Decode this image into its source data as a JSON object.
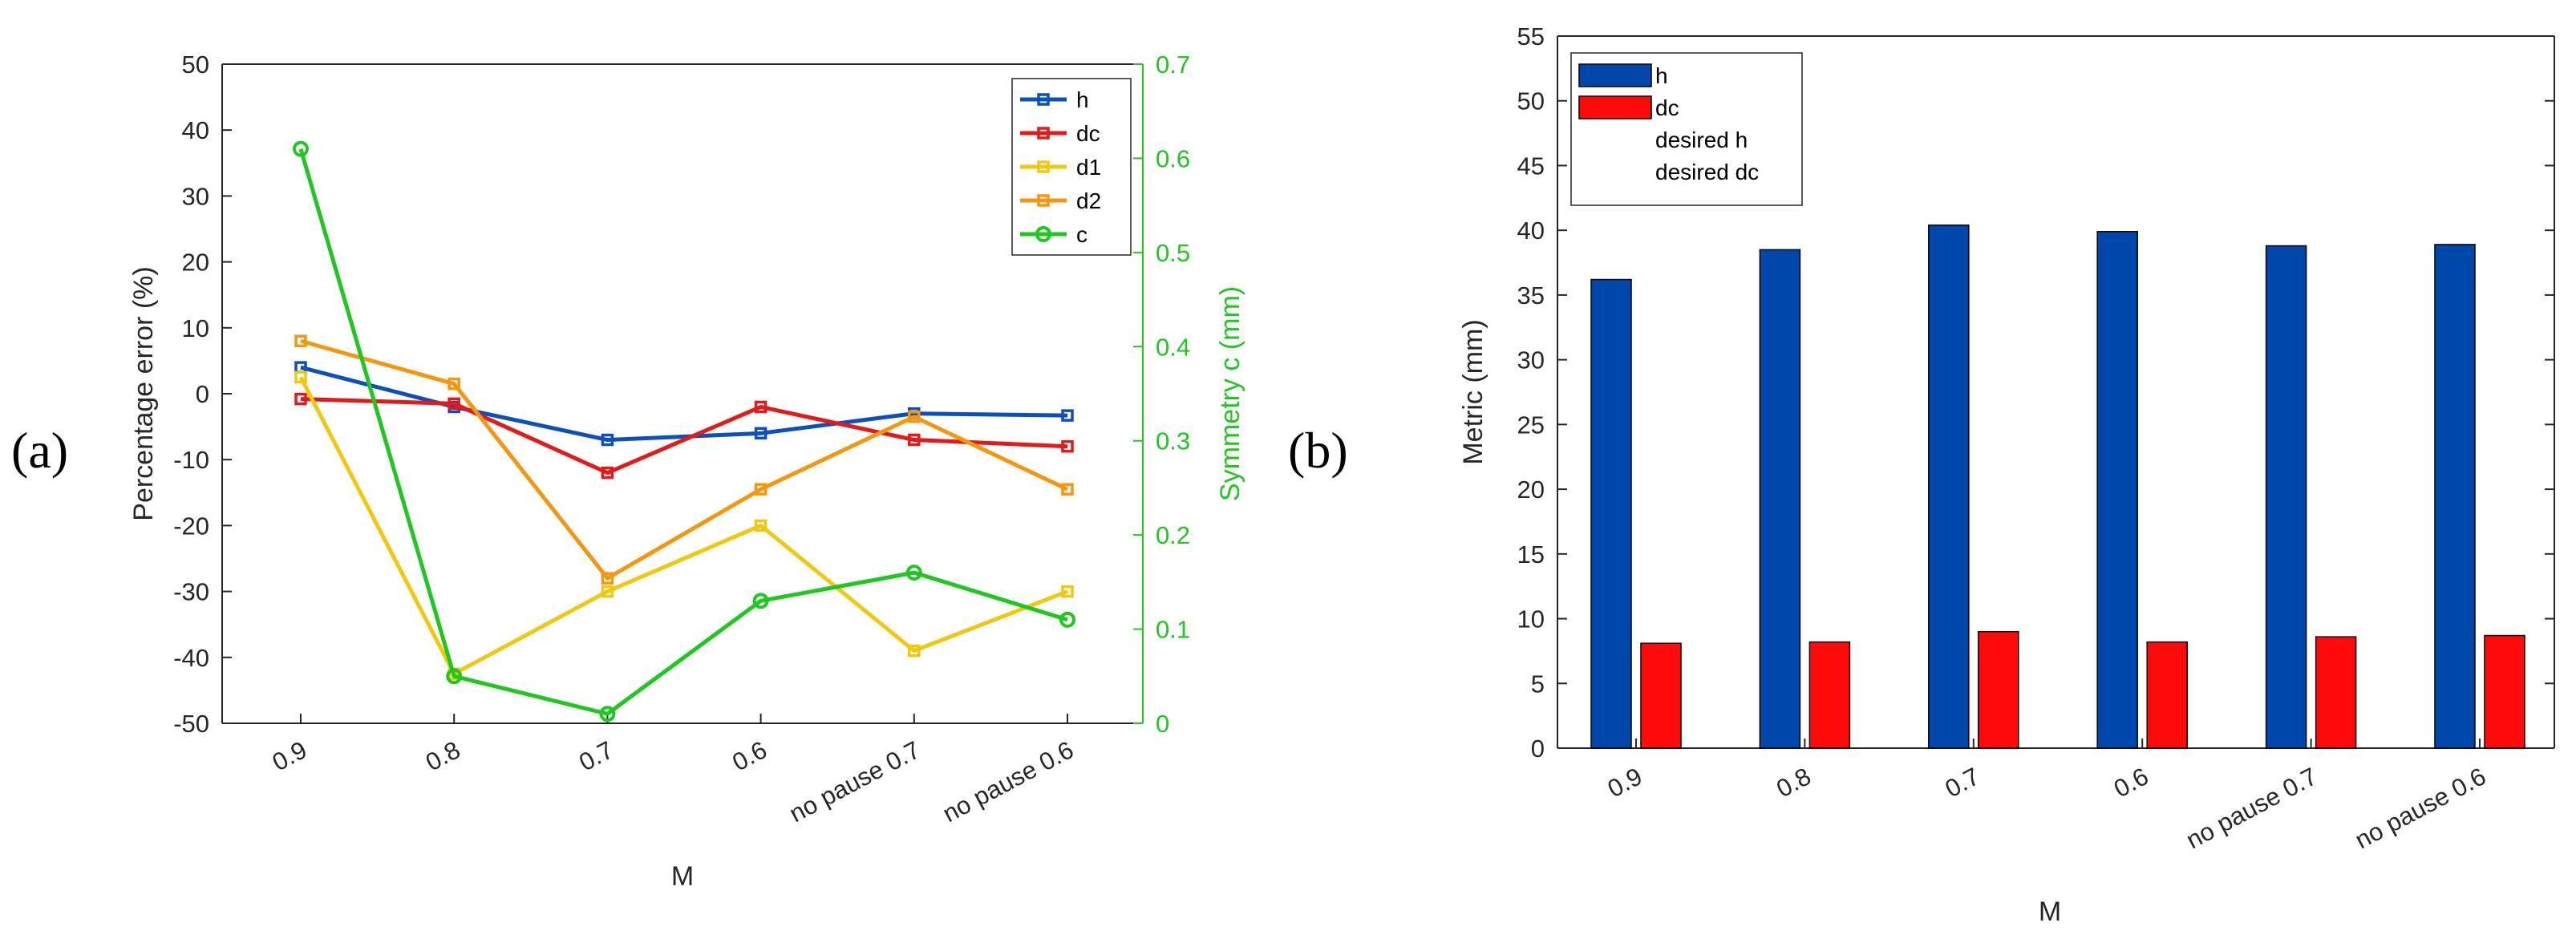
{
  "panels": [
    {
      "label": "(a)",
      "chart_data": {
        "type": "line",
        "categories": [
          "0.9",
          "0.8",
          "0.7",
          "0.6",
          "no pause 0.7",
          "no pause 0.6"
        ],
        "xlabel": "M",
        "ylabel": "Percentage error (%)",
        "ylabel_right": "Symmetry c (mm)",
        "ylim": [
          -50,
          50
        ],
        "ylim_right": [
          0,
          0.7
        ],
        "yticks": [
          -50,
          -40,
          -30,
          -20,
          -10,
          0,
          10,
          20,
          30,
          40,
          50
        ],
        "yticks_right": [
          "0",
          "0.1",
          "0.2",
          "0.3",
          "0.4",
          "0.5",
          "0.6",
          "0.7"
        ],
        "yticks_right_values": [
          0,
          0.1,
          0.2,
          0.3,
          0.4,
          0.5,
          0.6,
          0.7
        ],
        "legend_position": "top-right",
        "series": [
          {
            "name": "h",
            "axis": "left",
            "marker": "square",
            "color": "#0c4fbf",
            "values": [
              4,
              -2,
              -7,
              -6,
              -3,
              -3.3
            ]
          },
          {
            "name": "dc",
            "axis": "left",
            "marker": "square",
            "color": "#e6191a",
            "values": [
              -0.8,
              -1.5,
              -12,
              -2,
              -7,
              -8
            ]
          },
          {
            "name": "d1",
            "axis": "left",
            "marker": "square",
            "color": "#f2c80f",
            "values": [
              2.5,
              -42.5,
              -30,
              -20,
              -39,
              -30
            ]
          },
          {
            "name": "d2",
            "axis": "left",
            "marker": "square",
            "color": "#f5960d",
            "values": [
              8,
              1.5,
              -28,
              -14.5,
              -3.5,
              -14.5
            ]
          },
          {
            "name": "c",
            "axis": "right",
            "marker": "circle",
            "color": "#1ec81e",
            "values": [
              0.61,
              0.05,
              0.01,
              0.13,
              0.16,
              0.11
            ]
          }
        ]
      }
    },
    {
      "label": "(b)",
      "chart_data": {
        "type": "bar",
        "categories": [
          "0.9",
          "0.8",
          "0.7",
          "0.6",
          "no pause 0.7",
          "no pause 0.6"
        ],
        "xlabel": "M",
        "ylabel": "Metric (mm)",
        "ylim": [
          0,
          55
        ],
        "yticks": [
          0,
          5,
          10,
          15,
          20,
          25,
          30,
          35,
          40,
          45,
          50,
          55
        ],
        "legend_position": "top-left",
        "series": [
          {
            "name": "h",
            "color": "#0047ab",
            "values": [
              36.2,
              38.5,
              40.4,
              39.9,
              38.8,
              38.9
            ]
          },
          {
            "name": "dc",
            "color": "#ff0a0a",
            "values": [
              8.1,
              8.2,
              9.0,
              8.2,
              8.6,
              8.7
            ]
          }
        ],
        "legend_extra": [
          "desired h",
          "desired dc"
        ]
      }
    }
  ]
}
